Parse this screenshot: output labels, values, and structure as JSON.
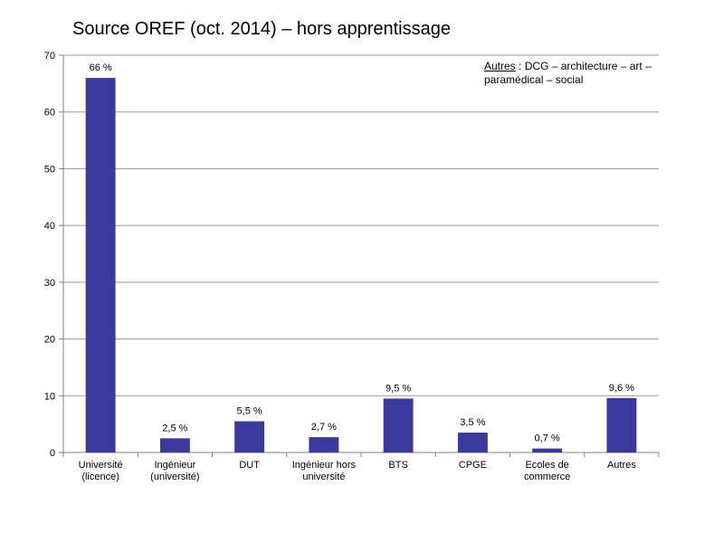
{
  "title": "Source OREF (oct. 2014) – hors apprentissage",
  "note": {
    "keyword": "Autres",
    "line1_rest": " : DCG – architecture – art –",
    "line2": "paramédical – social"
  },
  "colors": {
    "bar": "#3a3a9e",
    "grid": "#9a9a9a",
    "axis": "#808080"
  },
  "chart_data": {
    "type": "bar",
    "title": "Source OREF (oct. 2014) – hors apprentissage",
    "xlabel": "",
    "ylabel": "",
    "ylim": [
      0,
      70
    ],
    "yticks": [
      0,
      10,
      20,
      30,
      40,
      50,
      60,
      70
    ],
    "grid": true,
    "categories": [
      [
        "Université",
        "(licence)"
      ],
      [
        "Ingénieur",
        "(université)"
      ],
      [
        "DUT"
      ],
      [
        "Ingénieur hors",
        "université"
      ],
      [
        "BTS"
      ],
      [
        "CPGE"
      ],
      [
        "Ecoles de",
        "commerce"
      ],
      [
        "Autres"
      ]
    ],
    "values": [
      66,
      2.5,
      5.5,
      2.7,
      9.5,
      3.5,
      0.7,
      9.6
    ],
    "data_labels": [
      "66 %",
      "2,5 %",
      "5,5 %",
      "2,7 %",
      "9,5 %",
      "3,5 %",
      "0,7 %",
      "9,6 %"
    ]
  }
}
